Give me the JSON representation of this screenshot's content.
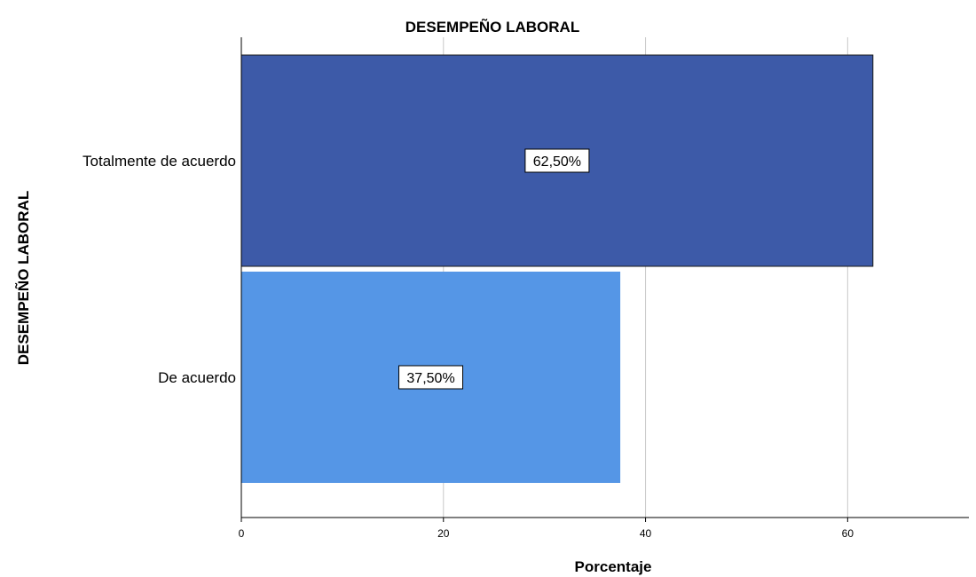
{
  "chart_data": {
    "type": "bar",
    "orientation": "horizontal",
    "title": "DESEMPEÑO LABORAL",
    "xlabel": "Porcentaje",
    "ylabel": "DESEMPEÑO LABORAL",
    "categories": [
      "Totalmente de acuerdo",
      "De acuerdo"
    ],
    "values": [
      62.5,
      37.5
    ],
    "data_labels": [
      "62,50%",
      "37,50%"
    ],
    "bar_colors": [
      "#3d5aa8",
      "#5596e6"
    ],
    "xlim": [
      0,
      72
    ],
    "xticks": [
      0,
      20,
      40,
      60
    ],
    "xtick_labels": [
      "0",
      "20",
      "40",
      "60"
    ],
    "grid": true,
    "legend": "none"
  }
}
